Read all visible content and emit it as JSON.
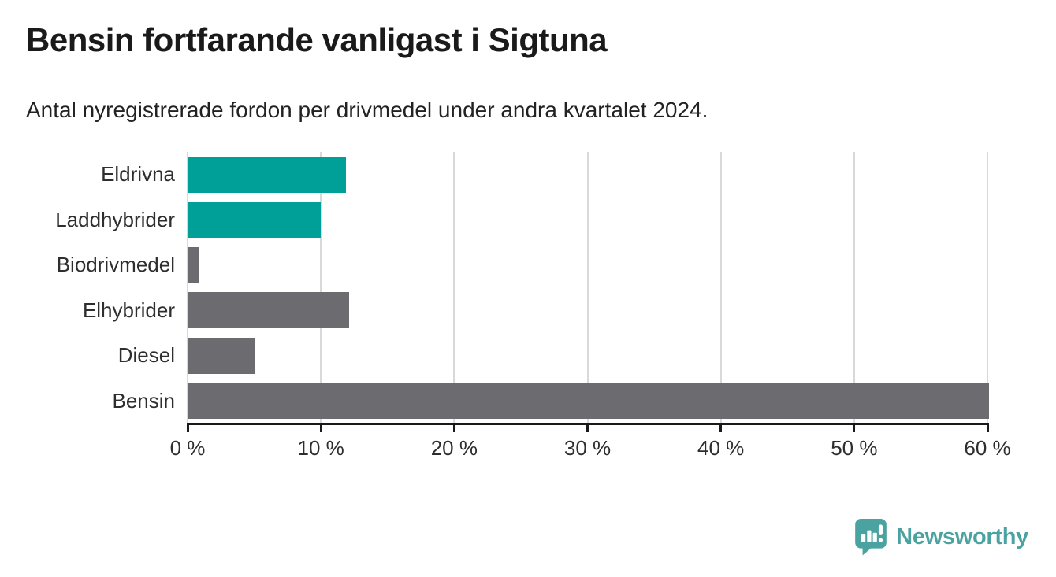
{
  "header": {
    "title": "Bensin fortfarande vanligast i Sigtuna",
    "subtitle": "Antal nyregistrerade fordon per drivmedel under andra kvartalet 2024."
  },
  "chart_data": {
    "type": "bar",
    "orientation": "horizontal",
    "title": "Bensin fortfarande vanligast i Sigtuna",
    "subtitle": "Antal nyregistrerade fordon per drivmedel under andra kvartalet 2024.",
    "categories": [
      "Eldrivna",
      "Laddhybrider",
      "Biodrivmedel",
      "Elhybrider",
      "Diesel",
      "Bensin"
    ],
    "values": [
      11.9,
      10,
      0.8,
      12.1,
      5,
      60.1
    ],
    "unit": "%",
    "bar_colors": [
      "#00a099",
      "#00a099",
      "#6b6b70",
      "#6b6b70",
      "#6b6b70",
      "#6b6b70"
    ],
    "highlight_color": "#00a099",
    "default_color": "#6b6b70",
    "xlim": [
      0,
      60
    ],
    "x_ticks": [
      0,
      10,
      20,
      30,
      40,
      50,
      60
    ],
    "x_tick_labels": [
      "0 %",
      "10 %",
      "20 %",
      "30 %",
      "40 %",
      "50 %",
      "60 %"
    ],
    "grid": "vertical-gridlines",
    "gridline_color": "#d9d9d9",
    "axis_color": "#1a1a1a",
    "legend": "none"
  },
  "footer": {
    "brand": "Newsworthy",
    "brand_color": "#4aa3a0",
    "logo_icon": "newsworthy-pin-bar-chart-icon"
  }
}
